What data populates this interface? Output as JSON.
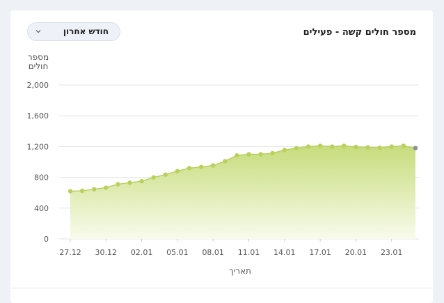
{
  "card": {
    "title": "מספר חולים קשה - פעילים",
    "period_select": {
      "value": "חודש אחרון",
      "icon": "chevron-down-icon"
    }
  },
  "chart_data": {
    "type": "area",
    "title": "מספר חולים קשה - פעילים",
    "ylabel": "מספר חולים",
    "xlabel": "תאריך",
    "ylim": [
      0,
      2000
    ],
    "yticks": [
      0,
      400,
      800,
      1200,
      1600,
      2000
    ],
    "ytick_labels": [
      "0",
      "400",
      "800",
      "1,200",
      "1,600",
      "2,000"
    ],
    "xtick_labels": [
      "27.12",
      "30.12",
      "02.01",
      "05.01",
      "08.01",
      "11.01",
      "14.01",
      "17.01",
      "20.01",
      "23.01"
    ],
    "x": [
      "27.12",
      "28.12",
      "29.12",
      "30.12",
      "31.12",
      "01.01",
      "02.01",
      "03.01",
      "04.01",
      "05.01",
      "06.01",
      "07.01",
      "08.01",
      "09.01",
      "10.01",
      "11.01",
      "12.01",
      "13.01",
      "14.01",
      "15.01",
      "16.01",
      "17.01",
      "18.01",
      "19.01",
      "20.01",
      "21.01",
      "22.01",
      "23.01",
      "24.01",
      "25.01"
    ],
    "series": [
      {
        "values": [
          620,
          625,
          645,
          665,
          710,
          730,
          750,
          800,
          835,
          880,
          920,
          935,
          955,
          1010,
          1085,
          1100,
          1100,
          1115,
          1155,
          1180,
          1200,
          1210,
          1200,
          1210,
          1195,
          1190,
          1185,
          1200,
          1210,
          1180
        ]
      }
    ],
    "colors": {
      "line": "#b9d15c",
      "fill_top": "#c7dc7c",
      "fill_bottom": "#f8fbec",
      "last_point": "#8f8f8f",
      "grid": "#e3e3e3"
    },
    "grid": true,
    "legend": "none"
  }
}
